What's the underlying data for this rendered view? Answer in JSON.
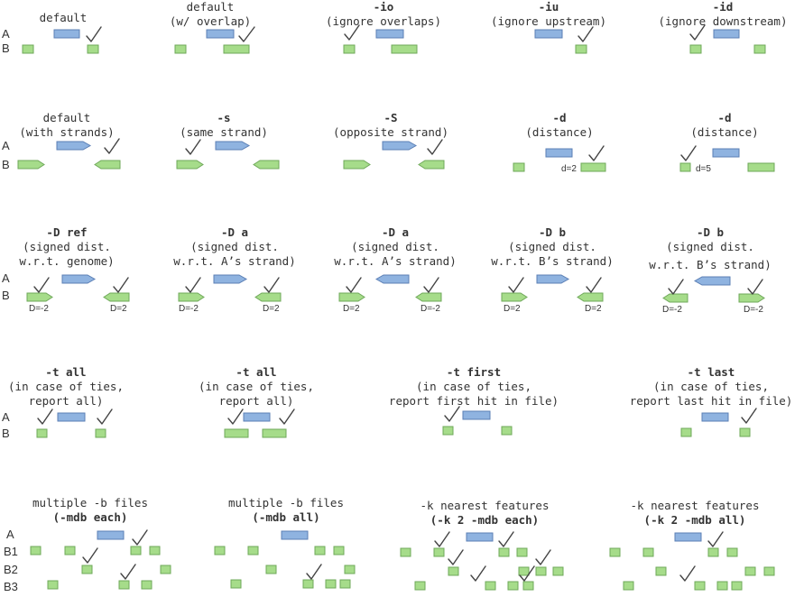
{
  "panels": {
    "p1": {
      "title": [
        "default"
      ],
      "row_labels": [
        "A",
        "B"
      ]
    },
    "p2": {
      "title": [
        "default",
        "(w/ overlap)"
      ]
    },
    "p3": {
      "title": [
        "-io",
        "(ignore overlaps)"
      ]
    },
    "p4": {
      "title": [
        "-iu",
        "(ignore upstream)"
      ]
    },
    "p5": {
      "title": [
        "-id",
        "(ignore downstream)"
      ]
    },
    "p6": {
      "title": [
        "default",
        "(with strands)"
      ],
      "row_labels": [
        "A",
        "B"
      ]
    },
    "p7": {
      "title": [
        "-s",
        "(same strand)"
      ]
    },
    "p8": {
      "title": [
        "-S",
        "(opposite strand)"
      ]
    },
    "p9": {
      "title": [
        "-d",
        "(distance)"
      ],
      "labels": [
        "d=2"
      ]
    },
    "p10": {
      "title": [
        "-d",
        "(distance)"
      ],
      "labels": [
        "d=5"
      ]
    },
    "p11": {
      "title": [
        "-D ref",
        "(signed dist.",
        "w.r.t. genome)"
      ],
      "row_labels": [
        "A",
        "B"
      ],
      "labels": [
        "D=-2",
        "D=2"
      ]
    },
    "p12": {
      "title": [
        "-D a",
        "(signed dist.",
        "w.r.t. A’s strand)"
      ],
      "labels": [
        "D=-2",
        "D=2"
      ]
    },
    "p13": {
      "title": [
        "-D a",
        "(signed dist.",
        "w.r.t. A’s strand)"
      ],
      "labels": [
        "D=2",
        "D=-2"
      ]
    },
    "p14": {
      "title": [
        "-D b",
        "(signed dist.",
        "w.r.t. B’s strand)"
      ],
      "labels": [
        "D=2",
        "D=2"
      ]
    },
    "p15": {
      "title": [
        "-D b",
        "(signed dist.",
        "w.r.t. B’s strand)"
      ],
      "labels": [
        "D=-2",
        "D=-2"
      ]
    },
    "p16": {
      "title": [
        "-t all",
        "(in case of ties,",
        "report all)"
      ],
      "row_labels": [
        "A",
        "B"
      ]
    },
    "p17": {
      "title": [
        "-t all",
        "(in case of ties,",
        "report all)"
      ]
    },
    "p18": {
      "title": [
        "-t first",
        "(in case of ties,",
        "report first hit in file)"
      ]
    },
    "p19": {
      "title": [
        "-t last",
        "(in case of ties,",
        "report last hit in file)"
      ]
    },
    "p20": {
      "title": [
        "multiple -b files",
        "(-mdb each)"
      ],
      "row_labels": [
        "A",
        "B1",
        "B2",
        "B3"
      ]
    },
    "p21": {
      "title": [
        "multiple -b files",
        "(-mdb all)"
      ]
    },
    "p22": {
      "title": [
        "-k nearest features",
        "(-k 2 -mdb each)"
      ]
    },
    "p23": {
      "title": [
        "-k nearest features",
        "(-k 2 -mdb all)"
      ]
    }
  },
  "colors": {
    "a_feature": "#8fb3e0",
    "b_feature": "#a6dc8a",
    "check": "#444444"
  },
  "icons": [
    "checkmark-icon",
    "right-arrow-feature",
    "left-arrow-feature"
  ]
}
